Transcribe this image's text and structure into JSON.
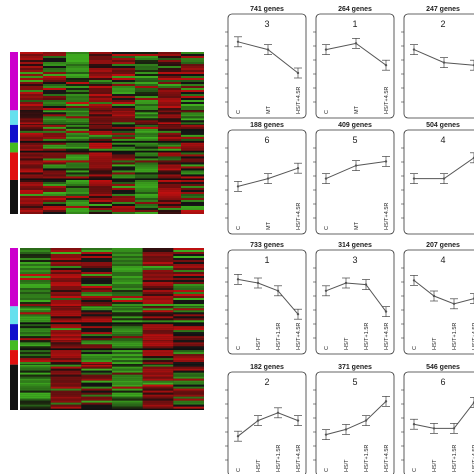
{
  "colors": {
    "magenta": "#cc00cc",
    "cyan": "#66e0ee",
    "blue": "#1010cc",
    "green": "#44bb22",
    "red": "#e01010",
    "black": "#111111",
    "heat_red": "#c01010",
    "heat_green": "#40b020",
    "line": "#555555"
  },
  "heatmaps": [
    {
      "color_bands": [
        {
          "color": "magenta",
          "frac": 0.36
        },
        {
          "color": "cyan",
          "frac": 0.09
        },
        {
          "color": "blue",
          "frac": 0.11
        },
        {
          "color": "green",
          "frac": 0.06
        },
        {
          "color": "red",
          "frac": 0.17
        },
        {
          "color": "black",
          "frac": 0.21
        }
      ],
      "columns": 8
    },
    {
      "color_bands": [
        {
          "color": "magenta",
          "frac": 0.36
        },
        {
          "color": "cyan",
          "frac": 0.11
        },
        {
          "color": "blue",
          "frac": 0.1
        },
        {
          "color": "green",
          "frac": 0.06
        },
        {
          "color": "red",
          "frac": 0.09
        },
        {
          "color": "black",
          "frac": 0.28
        }
      ],
      "columns": 6
    }
  ],
  "chart_data": [
    {
      "type": "line",
      "title": "741 genes",
      "cluster": "3",
      "categories": [
        "C",
        "MT",
        "HS/T+4.5R"
      ],
      "values": [
        0.85,
        0.7,
        0.25
      ],
      "ylim": [
        0,
        1
      ]
    },
    {
      "type": "line",
      "title": "264 genes",
      "cluster": "1",
      "categories": [
        "C",
        "MT",
        "HS/T+4.5R"
      ],
      "values": [
        0.7,
        0.82,
        0.4
      ],
      "ylim": [
        0,
        1
      ]
    },
    {
      "type": "line",
      "title": "247 genes",
      "cluster": "2",
      "categories": [
        "",
        "",
        ""
      ],
      "values": [
        0.7,
        0.45,
        0.4
      ],
      "ylim": [
        0,
        1
      ]
    },
    {
      "type": "line",
      "title": "188 genes",
      "cluster": "6",
      "categories": [
        "C",
        "MT",
        "HS/T+4.5R"
      ],
      "values": [
        0.3,
        0.45,
        0.65
      ],
      "ylim": [
        0,
        1
      ]
    },
    {
      "type": "line",
      "title": "409 genes",
      "cluster": "5",
      "categories": [
        "C",
        "MT",
        "HS/T+4.5R"
      ],
      "values": [
        0.45,
        0.7,
        0.78
      ],
      "ylim": [
        0,
        1
      ]
    },
    {
      "type": "line",
      "title": "504 genes",
      "cluster": "4",
      "categories": [
        "",
        "",
        ""
      ],
      "values": [
        0.45,
        0.45,
        0.85
      ],
      "ylim": [
        0,
        1
      ]
    },
    {
      "type": "line",
      "title": "733 genes",
      "cluster": "1",
      "categories": [
        "C",
        "HS/T",
        "HS/T+1.5R",
        "HS/T+4.5R"
      ],
      "values": [
        0.82,
        0.75,
        0.6,
        0.15
      ],
      "ylim": [
        0,
        1
      ]
    },
    {
      "type": "line",
      "title": "314 genes",
      "cluster": "3",
      "categories": [
        "C",
        "HS/T",
        "HS/T+1.5R",
        "HS/T+4.5R"
      ],
      "values": [
        0.6,
        0.75,
        0.72,
        0.2
      ],
      "ylim": [
        0,
        1
      ]
    },
    {
      "type": "line",
      "title": "207 genes",
      "cluster": "4",
      "categories": [
        "C",
        "HS/T",
        "HS/T+1.5R",
        "HS/T+4.5R"
      ],
      "values": [
        0.8,
        0.5,
        0.35,
        0.45
      ],
      "ylim": [
        0,
        1
      ]
    },
    {
      "type": "line",
      "title": "182 genes",
      "cluster": "2",
      "categories": [
        "C",
        "HS/T",
        "HS/T+1.5R",
        "HS/T+4.5R"
      ],
      "values": [
        0.15,
        0.45,
        0.6,
        0.45
      ],
      "ylim": [
        0,
        1
      ]
    },
    {
      "type": "line",
      "title": "371 genes",
      "cluster": "5",
      "categories": [
        "C",
        "HS/T",
        "HS/T+1.5R",
        "HS/T+4.5R"
      ],
      "values": [
        0.18,
        0.28,
        0.45,
        0.82
      ],
      "ylim": [
        0,
        1
      ]
    },
    {
      "type": "line",
      "title": "546 genes",
      "cluster": "6",
      "categories": [
        "C",
        "HS/T",
        "HS/T+1.5R",
        "HS/T+4.5R"
      ],
      "values": [
        0.38,
        0.3,
        0.3,
        0.8
      ],
      "ylim": [
        0,
        1
      ]
    }
  ]
}
